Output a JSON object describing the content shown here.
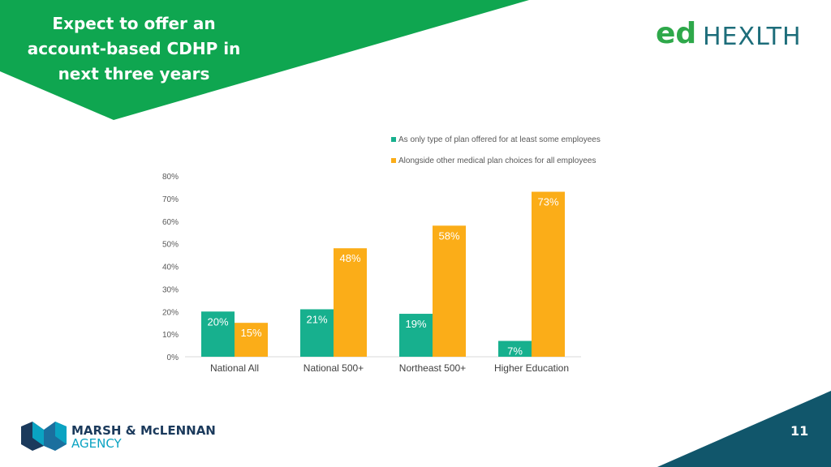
{
  "slide": {
    "title_lines": [
      "Expect to offer an",
      "account-based CDHP in",
      "next three years"
    ],
    "page_number": "11"
  },
  "brand": {
    "logo_ed": "ed",
    "logo_health": "HEXLTH",
    "company_line1": "MARSH & McLENNAN",
    "company_line2": "AGENCY"
  },
  "colors": {
    "banner_green": "#0fa650",
    "series1": "#17b08e",
    "series2": "#fbad18",
    "corner_teal": "#11566b"
  },
  "chart_data": {
    "type": "bar",
    "categories": [
      "National All",
      "National 500+",
      "Northeast 500+",
      "Higher Education"
    ],
    "series": [
      {
        "name": "As only type of plan offered for at least some employees",
        "values": [
          20,
          21,
          19,
          7
        ],
        "labels": [
          "20%",
          "21%",
          "19%",
          "7%"
        ]
      },
      {
        "name": "Alongside other medical plan choices for all employees",
        "values": [
          15,
          48,
          58,
          73
        ],
        "labels": [
          "15%",
          "48%",
          "58%",
          "73%"
        ]
      }
    ],
    "ylim": [
      0,
      80
    ],
    "yticks": [
      "0%",
      "10%",
      "20%",
      "30%",
      "40%",
      "50%",
      "60%",
      "70%",
      "80%"
    ],
    "legend_position": "top-right",
    "grid": false
  }
}
